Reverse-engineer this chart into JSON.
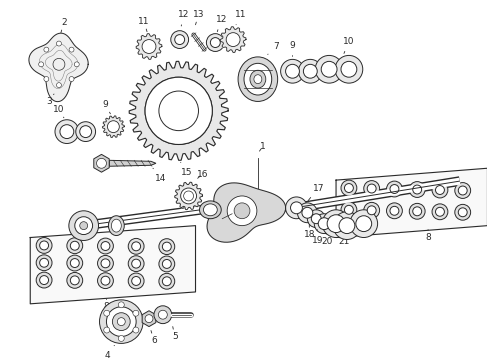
{
  "bg_color": "#ffffff",
  "lc": "#2a2a2a",
  "fig_width": 4.9,
  "fig_height": 3.6,
  "dpi": 100,
  "xlim": [
    0,
    490
  ],
  "ylim": [
    0,
    360
  ]
}
